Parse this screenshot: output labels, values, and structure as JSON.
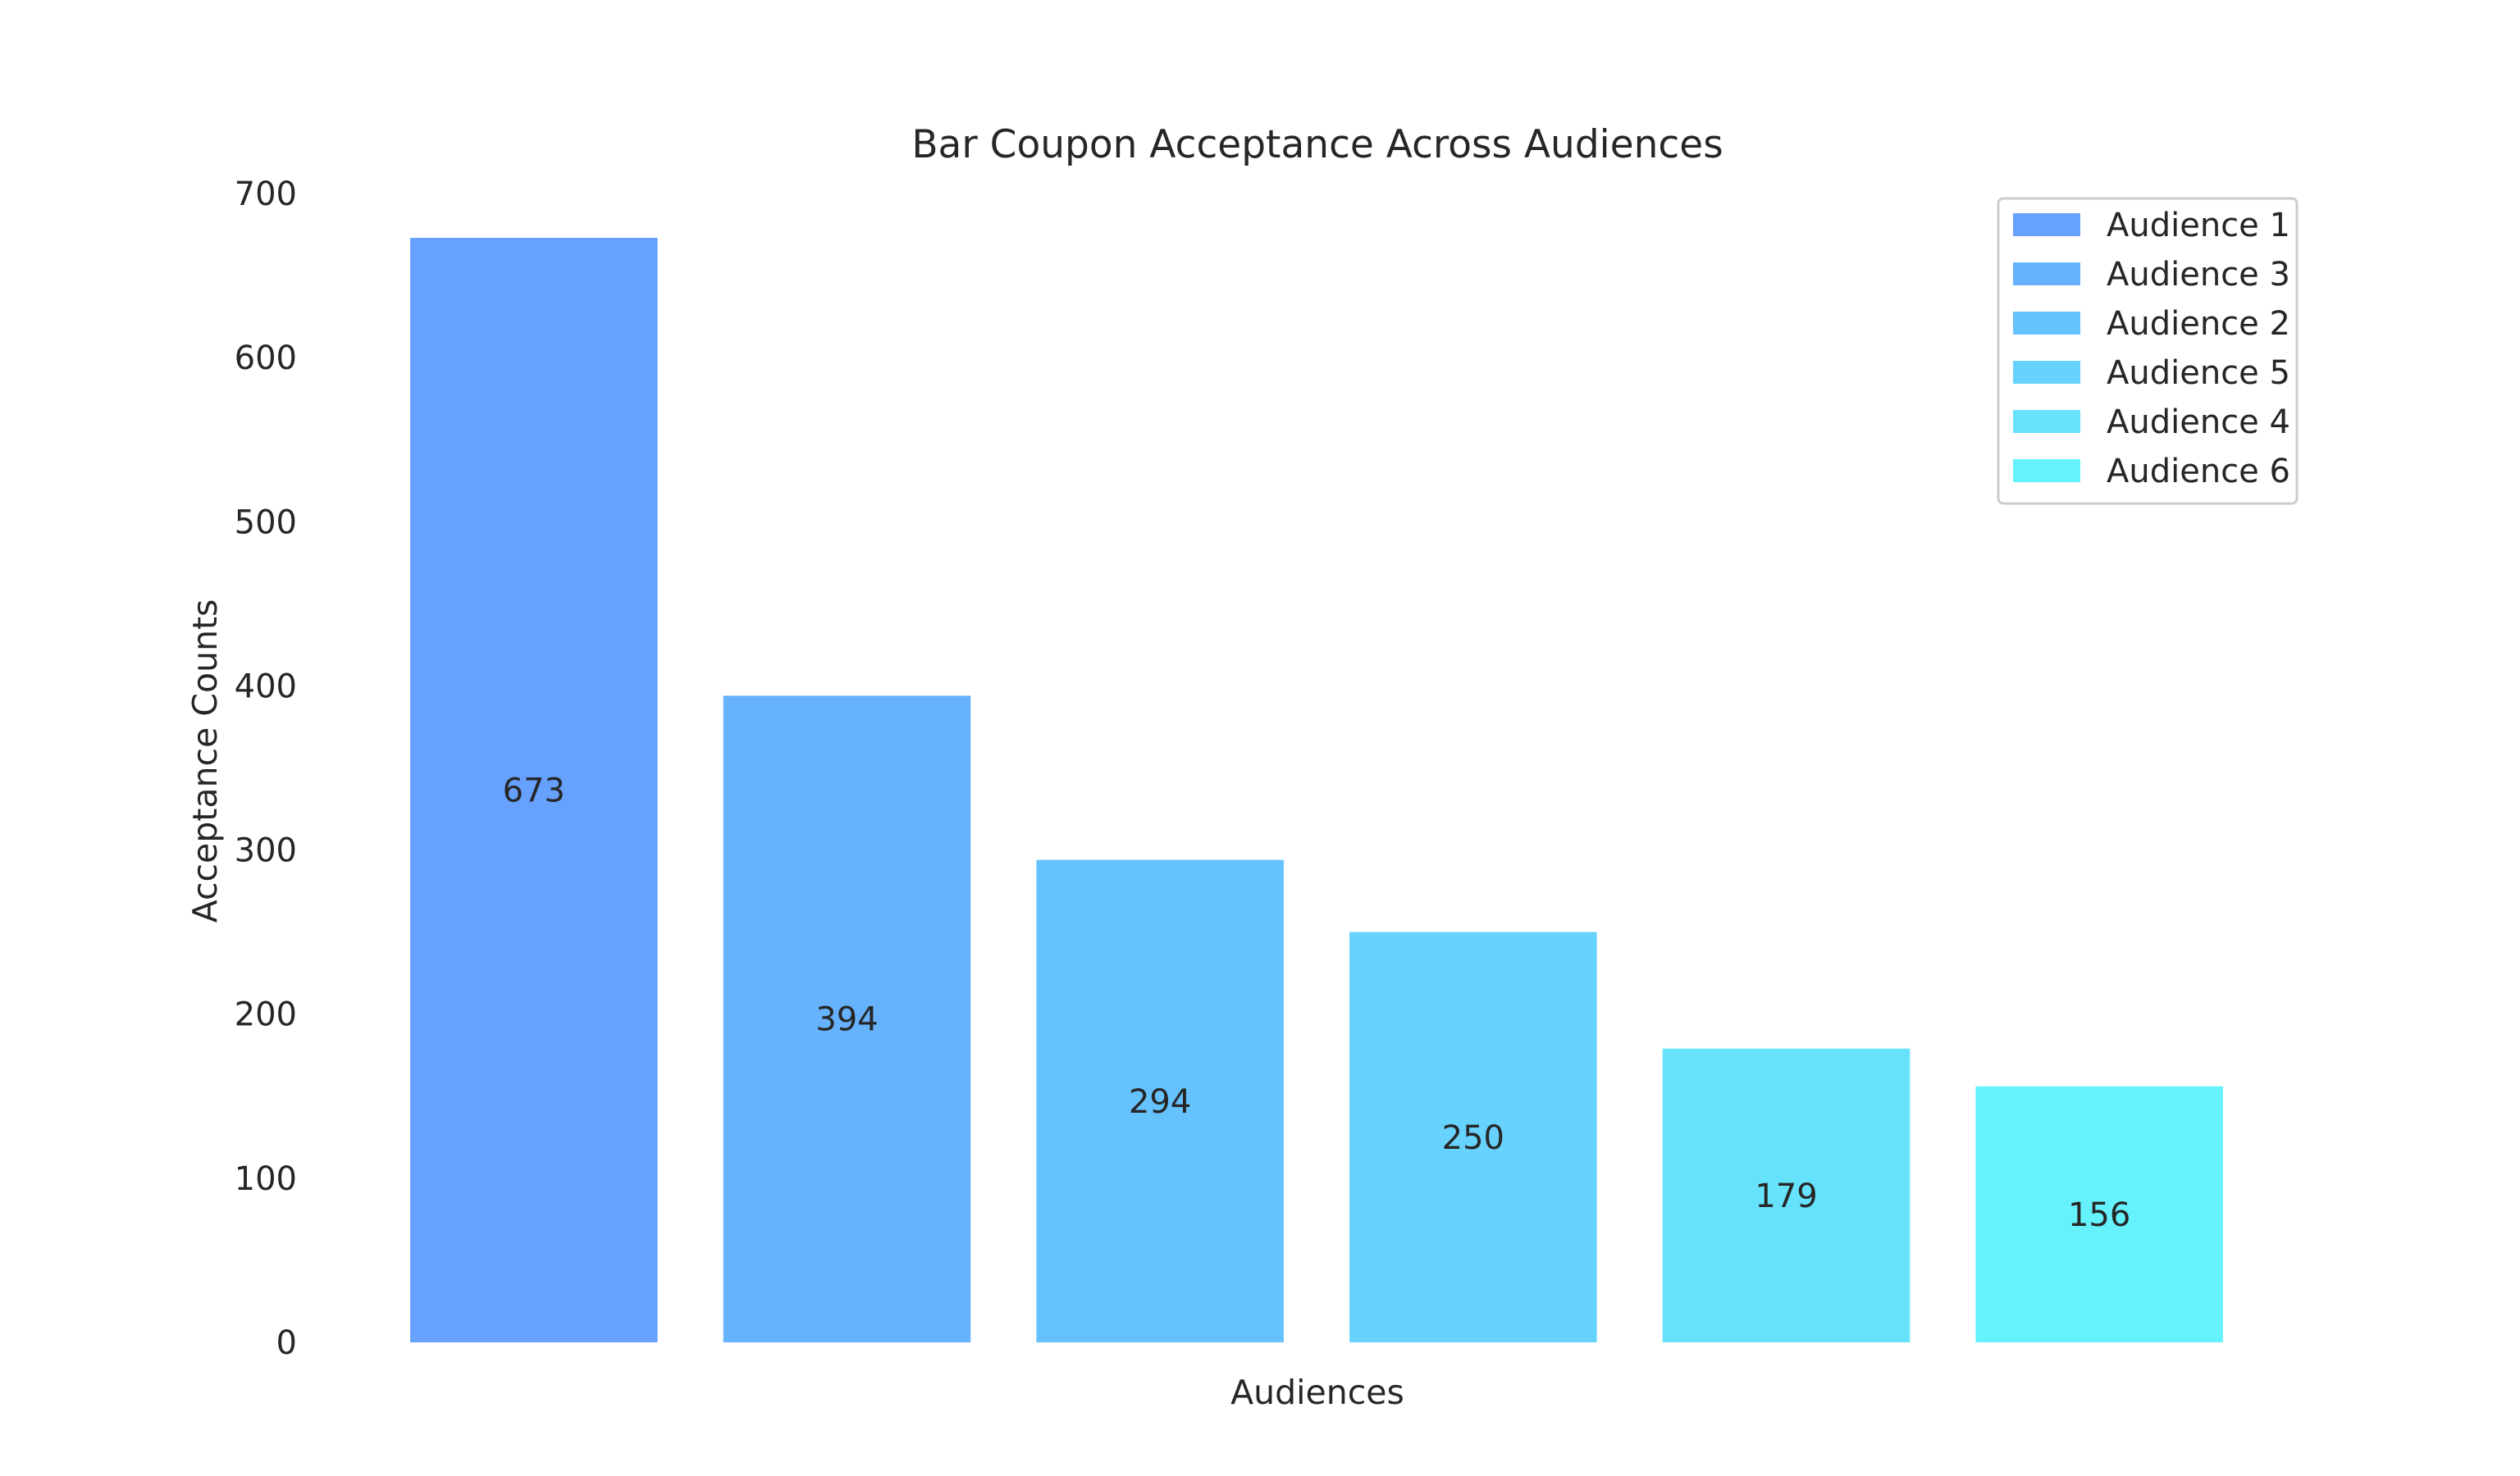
{
  "chart_data": {
    "type": "bar",
    "title": "Bar Coupon Acceptance Across Audiences",
    "xlabel": "Audiences",
    "ylabel": "Acceptance Counts",
    "ylim": [
      0,
      700
    ],
    "yticks": [
      0,
      100,
      200,
      300,
      400,
      500,
      600,
      700
    ],
    "grid": false,
    "legend_position": "top-right",
    "series": [
      {
        "name": "Audience 1",
        "value": 673,
        "color": "#66a1fd"
      },
      {
        "name": "Audience 3",
        "value": 394,
        "color": "#66b2fd"
      },
      {
        "name": "Audience 2",
        "value": 294,
        "color": "#66c2fd"
      },
      {
        "name": "Audience 5",
        "value": 250,
        "color": "#66d2fd"
      },
      {
        "name": "Audience 4",
        "value": 179,
        "color": "#66e2fd"
      },
      {
        "name": "Audience 6",
        "value": 156,
        "color": "#66f2fd"
      }
    ]
  }
}
